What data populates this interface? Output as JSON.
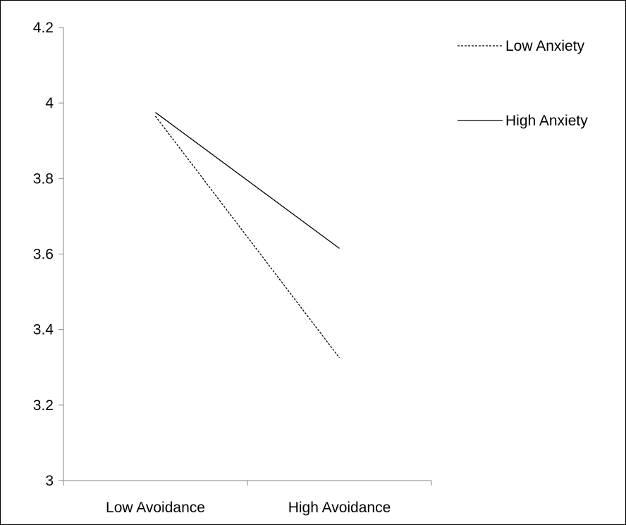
{
  "chart_data": {
    "type": "line",
    "title": "",
    "xlabel": "",
    "ylabel": "",
    "categories": [
      "Low Avoidance",
      "High Avoidance"
    ],
    "ylim": [
      3,
      4.2
    ],
    "yticks": [
      "3",
      "3.2",
      "3.4",
      "3.6",
      "3.8",
      "4",
      "4.2"
    ],
    "grid": false,
    "legend_position": "top-right",
    "series": [
      {
        "name": "Low Anxiety",
        "values": [
          3.965,
          3.325
        ],
        "line_style": "dashed",
        "color": "#000000"
      },
      {
        "name": "High Anxiety",
        "values": [
          3.975,
          3.615
        ],
        "line_style": "solid",
        "color": "#000000"
      }
    ]
  }
}
